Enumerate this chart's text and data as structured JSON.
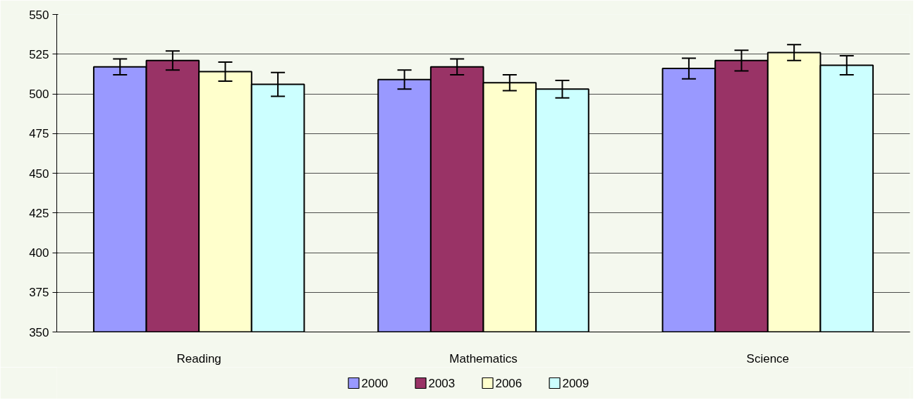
{
  "chart_data": {
    "type": "bar",
    "categories": [
      "Reading",
      "Mathematics",
      "Science"
    ],
    "series": [
      {
        "name": "2000",
        "color": "#9999ff",
        "values": [
          517,
          509,
          516
        ],
        "errors": [
          5,
          6,
          6.5
        ]
      },
      {
        "name": "2003",
        "color": "#993366",
        "values": [
          521,
          517,
          521
        ],
        "errors": [
          6,
          5,
          6.5
        ]
      },
      {
        "name": "2006",
        "color": "#ffffcc",
        "values": [
          514,
          507,
          526
        ],
        "errors": [
          6,
          5,
          5
        ]
      },
      {
        "name": "2009",
        "color": "#ccffff",
        "values": [
          506,
          503,
          518
        ],
        "errors": [
          7.5,
          5.5,
          6
        ]
      }
    ],
    "ylim": [
      350,
      550
    ],
    "yticks": [
      350,
      375,
      400,
      425,
      450,
      475,
      500,
      525,
      550
    ],
    "grid": "y",
    "legend": "bottom"
  }
}
